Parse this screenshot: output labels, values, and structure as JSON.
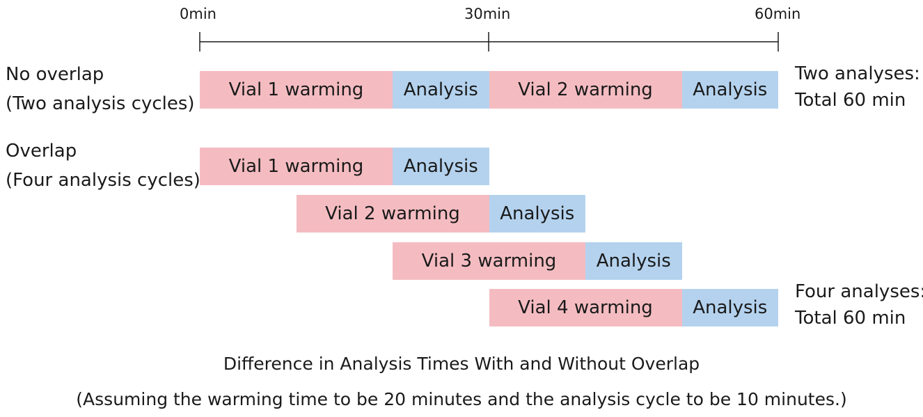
{
  "axis": {
    "ticks": [
      {
        "label": "0min",
        "minutes": 0
      },
      {
        "label": "30min",
        "minutes": 30
      },
      {
        "label": "60min",
        "minutes": 60
      }
    ]
  },
  "no_overlap": {
    "label_line1": "No overlap",
    "label_line2": "(Two analysis cycles)",
    "total_line1": "Two analyses:",
    "total_line2": "Total 60 min",
    "bars": [
      {
        "label": "Vial 1 warming",
        "start": 0,
        "end": 20,
        "kind": "warming"
      },
      {
        "label": "Analysis",
        "start": 20,
        "end": 30,
        "kind": "analysis"
      },
      {
        "label": "Vial 2 warming",
        "start": 30,
        "end": 50,
        "kind": "warming"
      },
      {
        "label": "Analysis",
        "start": 50,
        "end": 60,
        "kind": "analysis"
      }
    ]
  },
  "overlap": {
    "label_line1": "Overlap",
    "label_line2": "(Four analysis cycles)",
    "total_line1": "Four analyses:",
    "total_line2": "Total 60 min",
    "rows": [
      [
        {
          "label": "Vial 1 warming",
          "start": 0,
          "end": 20,
          "kind": "warming"
        },
        {
          "label": "Analysis",
          "start": 20,
          "end": 30,
          "kind": "analysis"
        }
      ],
      [
        {
          "label": "Vial 2 warming",
          "start": 10,
          "end": 30,
          "kind": "warming"
        },
        {
          "label": "Analysis",
          "start": 30,
          "end": 40,
          "kind": "analysis"
        }
      ],
      [
        {
          "label": "Vial 3 warming",
          "start": 20,
          "end": 40,
          "kind": "warming"
        },
        {
          "label": "Analysis",
          "start": 40,
          "end": 50,
          "kind": "analysis"
        }
      ],
      [
        {
          "label": "Vial 4 warming",
          "start": 30,
          "end": 50,
          "kind": "warming"
        },
        {
          "label": "Analysis",
          "start": 50,
          "end": 60,
          "kind": "analysis"
        }
      ]
    ]
  },
  "caption": {
    "line1": "Difference in Analysis Times With and Without Overlap",
    "line2": "(Assuming the warming time to be 20 minutes and the analysis cycle to be 10 minutes.)"
  },
  "colors": {
    "warming": "#f4bcc1",
    "analysis": "#b4d2ee"
  }
}
